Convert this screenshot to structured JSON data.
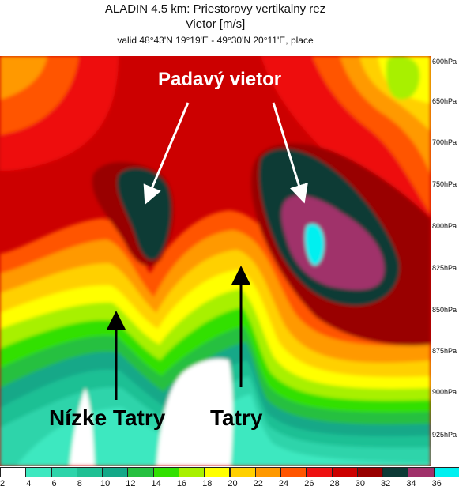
{
  "header": {
    "line1": "ALADIN 4.5 km: Priestorovy vertikalny rez",
    "line2": "Vietor [m/s]",
    "line3": "valid 48°43'N 19°19'E - 49°30'N 20°11'E, place"
  },
  "pressure_levels": [
    "600hPa",
    "650hPa",
    "700hPa",
    "750hPa",
    "800hPa",
    "825hPa",
    "850hPa",
    "875hPa",
    "900hPa",
    "925hPa"
  ],
  "annotations": {
    "downslope_wind": "Padavý vietor",
    "low_tatras": "Nízke Tatry",
    "tatras": "Tatry"
  },
  "colorbar": {
    "labels": [
      "2",
      "4",
      "6",
      "8",
      "10",
      "12",
      "14",
      "16",
      "18",
      "20",
      "22",
      "24",
      "26",
      "28",
      "30",
      "32",
      "34",
      "36"
    ],
    "colors": [
      "#ffffff",
      "#3ee8c0",
      "#2ed4aa",
      "#1fc094",
      "#14a888",
      "#26c040",
      "#32e000",
      "#a8f000",
      "#ffff00",
      "#ffd000",
      "#ff9900",
      "#ff5500",
      "#ee1111",
      "#cc0000",
      "#990000",
      "#0c3a36",
      "#a0306a",
      "#00f0f0"
    ]
  },
  "chart_data": {
    "type": "heatmap",
    "title": "ALADIN 4.5 km: Priestorovy vertikalny rez",
    "subtitle": "Vietor [m/s]",
    "ylabel": "",
    "ylim": [
      600,
      940
    ],
    "y_scale": "pressure (inverted)",
    "y_ticks": [
      600,
      650,
      700,
      750,
      800,
      825,
      850,
      875,
      900,
      925
    ],
    "value_range": [
      0,
      36
    ],
    "levels": [
      2,
      4,
      6,
      8,
      10,
      12,
      14,
      16,
      18,
      20,
      22,
      24,
      26,
      28,
      30,
      32,
      34,
      36
    ],
    "features": [
      {
        "label": "Padavý vietor",
        "value_min": 30,
        "value_max": 36,
        "location": "lee of both ridges, 750-825 hPa"
      },
      {
        "label": "Nízke Tatry",
        "value_min": 0,
        "value_max": 14,
        "location": "left ridge, 850-940 hPa"
      },
      {
        "label": "Tatry",
        "value_min": 0,
        "value_max": 14,
        "location": "central ridge, 825-940 hPa"
      }
    ]
  }
}
